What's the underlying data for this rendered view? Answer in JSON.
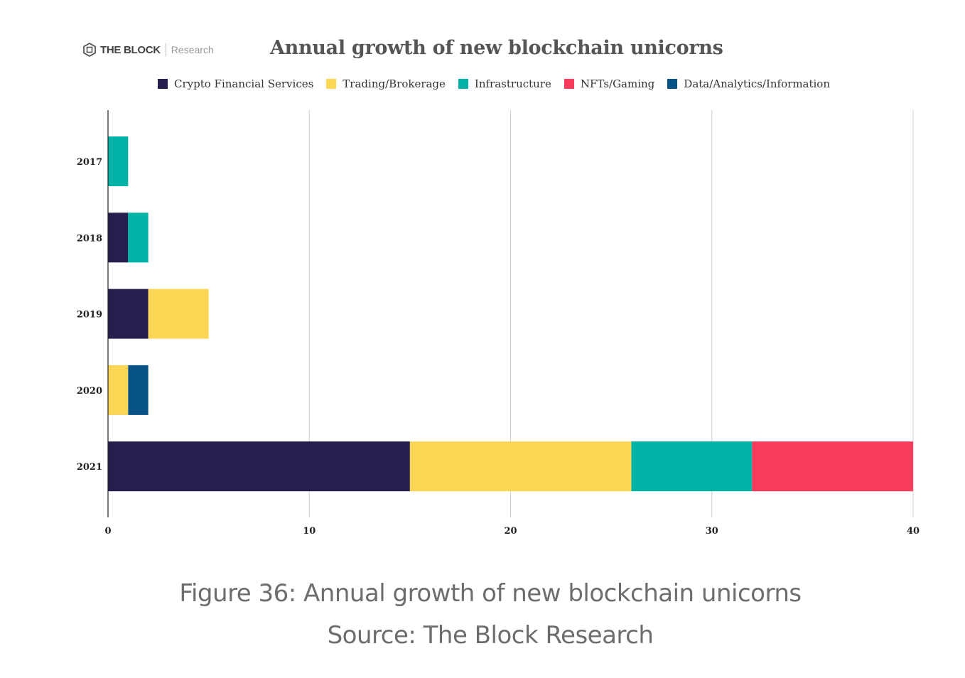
{
  "logo": {
    "brand": "THE BLOCK",
    "sub": "Research"
  },
  "chart_data": {
    "type": "bar",
    "orientation": "horizontal",
    "stacked": true,
    "title": "Annual growth of new blockchain unicorns",
    "categories": [
      "2017",
      "2018",
      "2019",
      "2020",
      "2021"
    ],
    "series": [
      {
        "name": "Crypto Financial Services",
        "color": "#251f4d",
        "values": [
          0,
          1,
          2,
          0,
          15
        ]
      },
      {
        "name": "Trading/Brokerage",
        "color": "#fdd655",
        "values": [
          0,
          0,
          3,
          1,
          11
        ]
      },
      {
        "name": "Infrastructure",
        "color": "#01b2a6",
        "values": [
          1,
          1,
          0,
          0,
          6
        ]
      },
      {
        "name": "NFTs/Gaming",
        "color": "#fb3b5d",
        "values": [
          0,
          0,
          0,
          0,
          8
        ]
      },
      {
        "name": "Data/Analytics/Information",
        "color": "#075388",
        "values": [
          0,
          0,
          0,
          1,
          0
        ]
      }
    ],
    "xlim": [
      0,
      40
    ],
    "xticks": [
      "0",
      "10",
      "20",
      "30",
      "40"
    ],
    "grid": true,
    "legend": "top"
  },
  "caption": {
    "figure": "Figure 36: Annual growth of new blockchain unicorns",
    "source": "Source: The Block Research"
  }
}
